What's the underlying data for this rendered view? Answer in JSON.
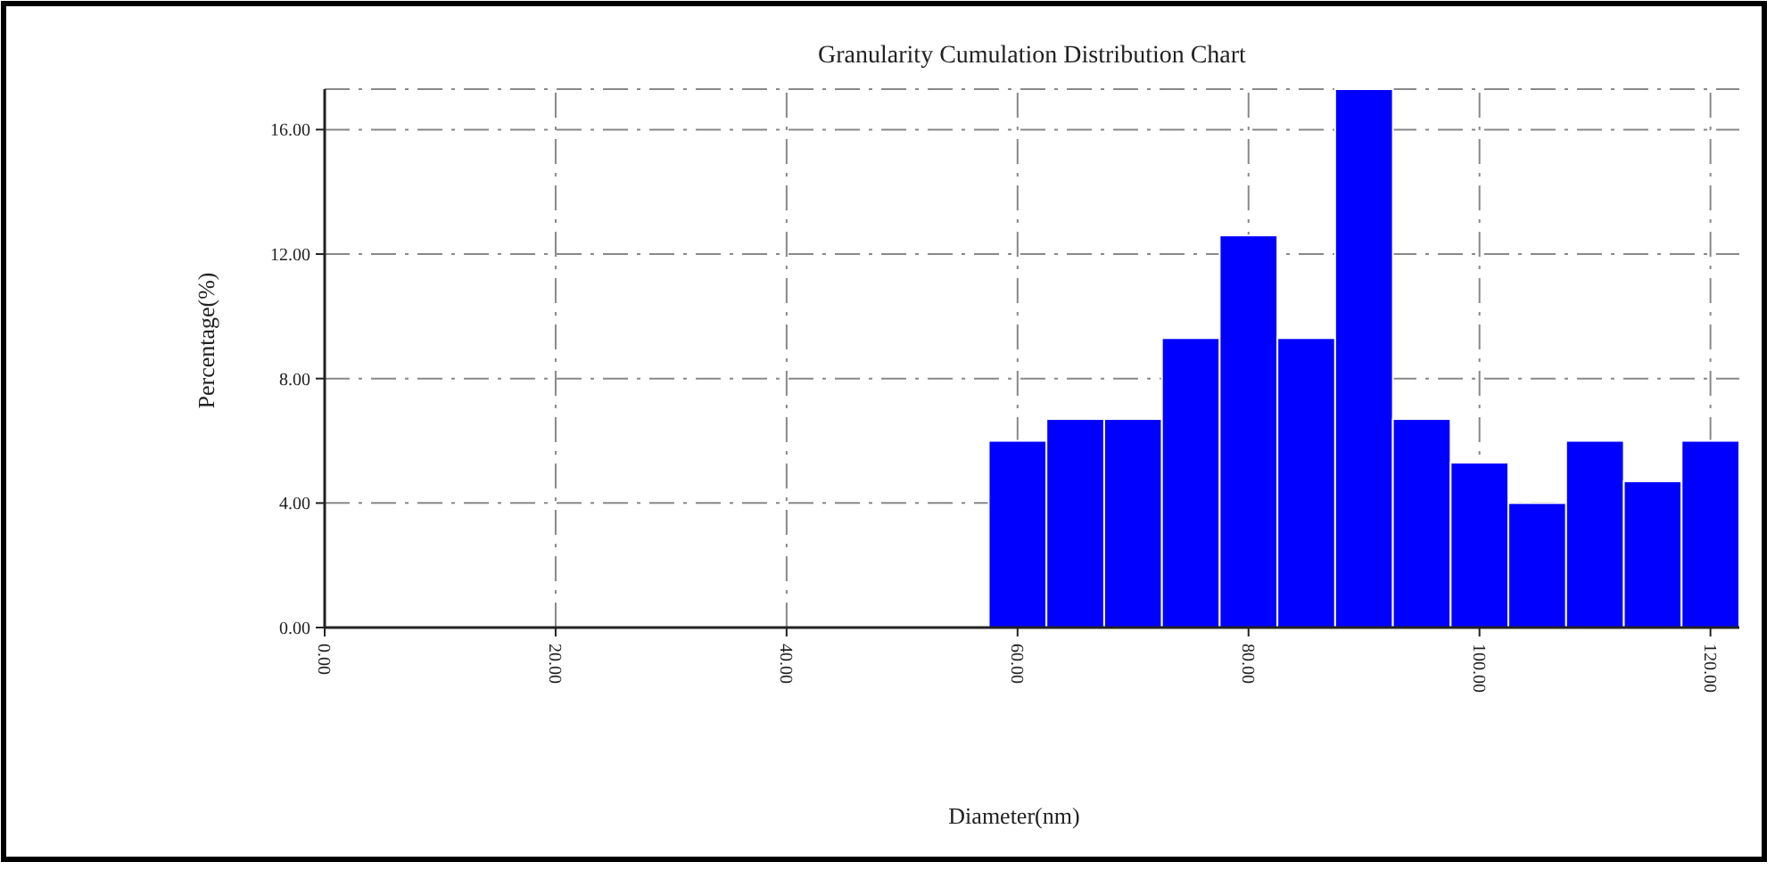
{
  "chart_data": {
    "type": "histogram",
    "title": "Granularity Cumulation Distribution  Chart",
    "xlabel": "Diameter(nm)",
    "ylabel": "Percentage(%)",
    "bins": [
      57.5,
      62.5,
      67.5,
      72.5,
      77.5,
      82.5,
      87.5,
      92.5,
      97.5,
      102.5,
      107.5,
      112.5,
      117.5,
      122.5
    ],
    "values": [
      6.0,
      6.7,
      6.7,
      9.3,
      12.6,
      9.3,
      17.3,
      6.7,
      5.3,
      4.0,
      6.0,
      4.7,
      6.0
    ],
    "color": "#0000ff",
    "xlim": [
      0,
      122.5
    ],
    "ylim": [
      0,
      17.3
    ],
    "xticks": [
      {
        "value": 0,
        "label": "0.00"
      },
      {
        "value": 20,
        "label": "20.00"
      },
      {
        "value": 40,
        "label": "40.00"
      },
      {
        "value": 60,
        "label": "60.00"
      },
      {
        "value": 80,
        "label": "80.00"
      },
      {
        "value": 100,
        "label": "100.00"
      },
      {
        "value": 120,
        "label": "120.00"
      }
    ],
    "yticks": [
      {
        "value": 0,
        "label": "0.00"
      },
      {
        "value": 4,
        "label": "4.00"
      },
      {
        "value": 8,
        "label": "8.00"
      },
      {
        "value": 12,
        "label": "12.00"
      },
      {
        "value": 16,
        "label": "16.00"
      }
    ],
    "grid": true
  }
}
